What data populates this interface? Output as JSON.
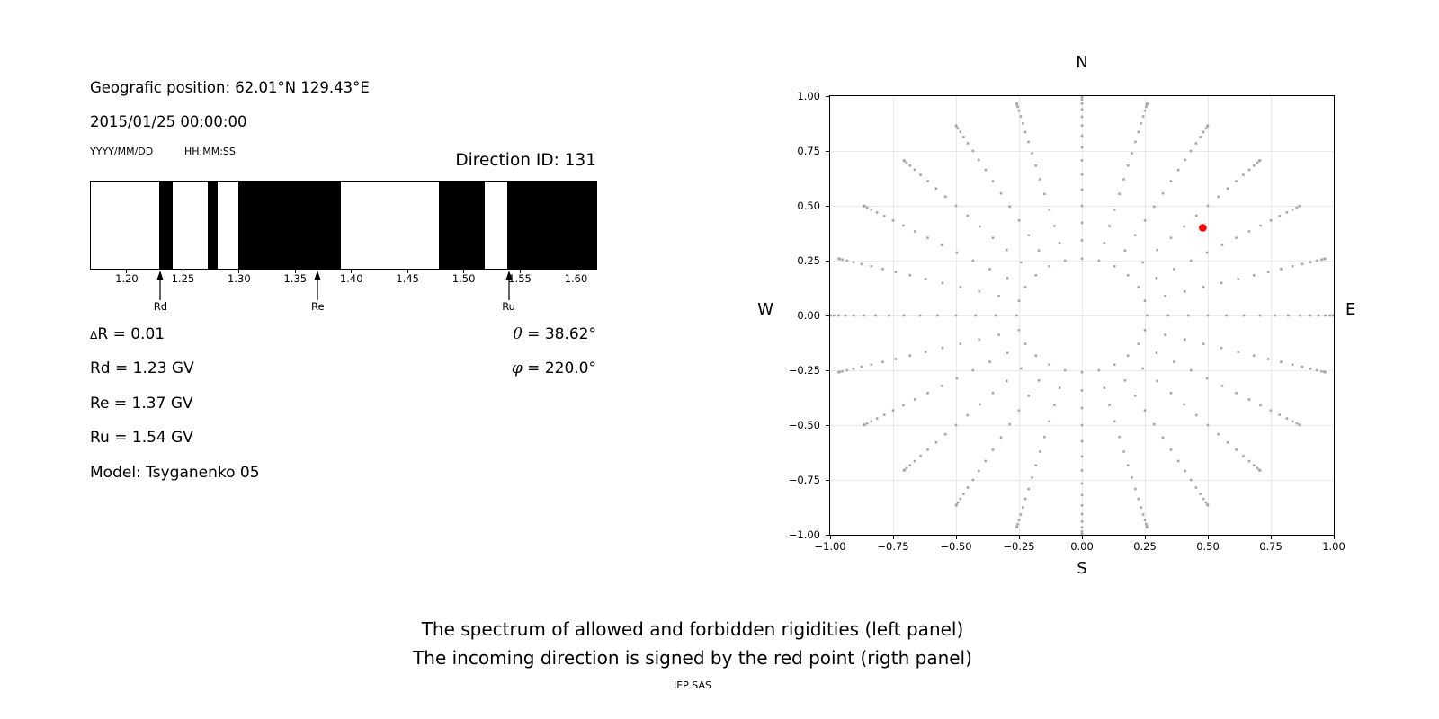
{
  "header": {
    "geographic_position": "Geografic position: 62.01°N 129.43°E",
    "datetime": "2015/01/25 00:00:00",
    "date_format": "YYYY/MM/DD",
    "time_format": "HH:MM:SS",
    "direction_id": "Direction ID: 131"
  },
  "parameters": {
    "delta_symbol": "Δ",
    "delta_rest": "R = 0.01",
    "rd": "Rd = 1.23 GV",
    "re": "Re = 1.37 GV",
    "ru": "Ru = 1.54 GV",
    "model": "Model: Tsyganenko 05",
    "theta_symbol": "θ",
    "theta_rest": " = 38.62°",
    "phi_symbol": "φ",
    "phi_rest": " = 220.0°"
  },
  "captions": {
    "line1": "The spectrum of allowed and forbidden rigidities (left panel)",
    "line2": "The incoming direction is signed by the red point (rigth panel)",
    "credit": "IEP SAS"
  },
  "chart_data": [
    {
      "type": "bar",
      "title": "The spectrum of allowed and forbidden rigidities",
      "x_min": 1.168,
      "x_max": 1.618,
      "x_ticks": [
        1.2,
        1.25,
        1.3,
        1.35,
        1.4,
        1.45,
        1.5,
        1.55,
        1.6
      ],
      "forbidden_bands_gv": [
        [
          1.229,
          1.241
        ],
        [
          1.272,
          1.281
        ],
        [
          1.299,
          1.391
        ],
        [
          1.478,
          1.519
        ],
        [
          1.539,
          1.618
        ]
      ],
      "band_color": "#000000",
      "allowed_color": "#ffffff",
      "markers": [
        {
          "label": "Rd",
          "value": 1.23
        },
        {
          "label": "Re",
          "value": 1.37
        },
        {
          "label": "Ru",
          "value": 1.54
        }
      ],
      "delta_r": 0.01,
      "rd_gv": 1.23,
      "re_gv": 1.37,
      "ru_gv": 1.54,
      "theta_deg": 38.62,
      "phi_deg": 220.0,
      "model": "Tsyganenko 05"
    },
    {
      "type": "scatter",
      "title": "Incoming direction map",
      "xlim": [
        -1.0,
        1.0
      ],
      "ylim": [
        -1.0,
        1.0
      ],
      "x_ticks": [
        -1.0,
        -0.75,
        -0.5,
        -0.25,
        0.0,
        0.25,
        0.5,
        0.75,
        1.0
      ],
      "y_ticks": [
        -1.0,
        -0.75,
        -0.5,
        -0.25,
        0.0,
        0.25,
        0.5,
        0.75,
        1.0
      ],
      "grid": true,
      "grid_color": "#e9e9e9",
      "compass": {
        "top": "N",
        "bottom": "S",
        "left": "W",
        "right": "E"
      },
      "spokes": {
        "count": 24,
        "azimuth_step_deg": 15,
        "zenith_start_deg": 15,
        "zenith_step_deg": 5,
        "zenith_end_deg": 90,
        "radius_mapping": "sin(zenith)"
      },
      "dot_color": "#a2a2a2",
      "red_point": {
        "x": 0.48,
        "y": 0.4,
        "color": "#ff0000"
      }
    }
  ]
}
